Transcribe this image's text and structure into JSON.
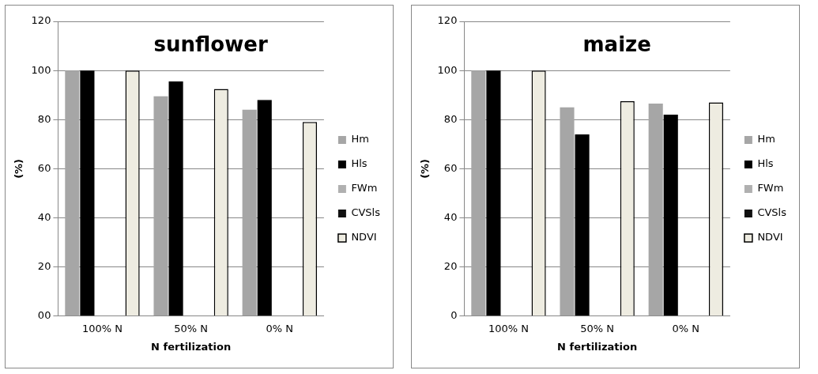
{
  "chart_data": [
    {
      "type": "bar",
      "title": "sunflower",
      "xlabel": "N fertilization",
      "ylabel": "(%)",
      "categories": [
        "100% N",
        "50% N",
        "0% N"
      ],
      "series": [
        {
          "name": "Hm",
          "color": "#a6a6a6",
          "values": [
            100,
            89.5,
            84
          ]
        },
        {
          "name": "Hls",
          "color": "#000000",
          "values": [
            100,
            95.5,
            88
          ]
        },
        {
          "name": "FWm",
          "color": "#b0b0b0",
          "values": [
            null,
            null,
            null
          ]
        },
        {
          "name": "CVSls",
          "color": "#101010",
          "values": [
            null,
            null,
            null
          ]
        },
        {
          "name": "NDVI",
          "color": "#eeece1",
          "values": [
            100,
            92.5,
            79
          ]
        }
      ],
      "ylim": [
        0,
        120
      ],
      "yticks": [
        {
          "value": 0,
          "label": "00"
        },
        20,
        40,
        60,
        80,
        100,
        120
      ],
      "grid": "y",
      "legend": "right"
    },
    {
      "type": "bar",
      "title": "maize",
      "xlabel": "N fertilization",
      "ylabel": "(%)",
      "categories": [
        "100% N",
        "50% N",
        "0% N"
      ],
      "series": [
        {
          "name": "Hm",
          "color": "#a6a6a6",
          "values": [
            100,
            85,
            86.5
          ]
        },
        {
          "name": "Hls",
          "color": "#000000",
          "values": [
            100,
            74,
            82
          ]
        },
        {
          "name": "FWm",
          "color": "#b0b0b0",
          "values": [
            null,
            null,
            null
          ]
        },
        {
          "name": "CVSls",
          "color": "#101010",
          "values": [
            null,
            null,
            null
          ]
        },
        {
          "name": "NDVI",
          "color": "#eeece1",
          "values": [
            100,
            87.5,
            87
          ]
        }
      ],
      "ylim": [
        0,
        120
      ],
      "yticks": [
        0,
        20,
        40,
        60,
        80,
        100,
        120
      ],
      "grid": "y",
      "legend": "right"
    }
  ]
}
